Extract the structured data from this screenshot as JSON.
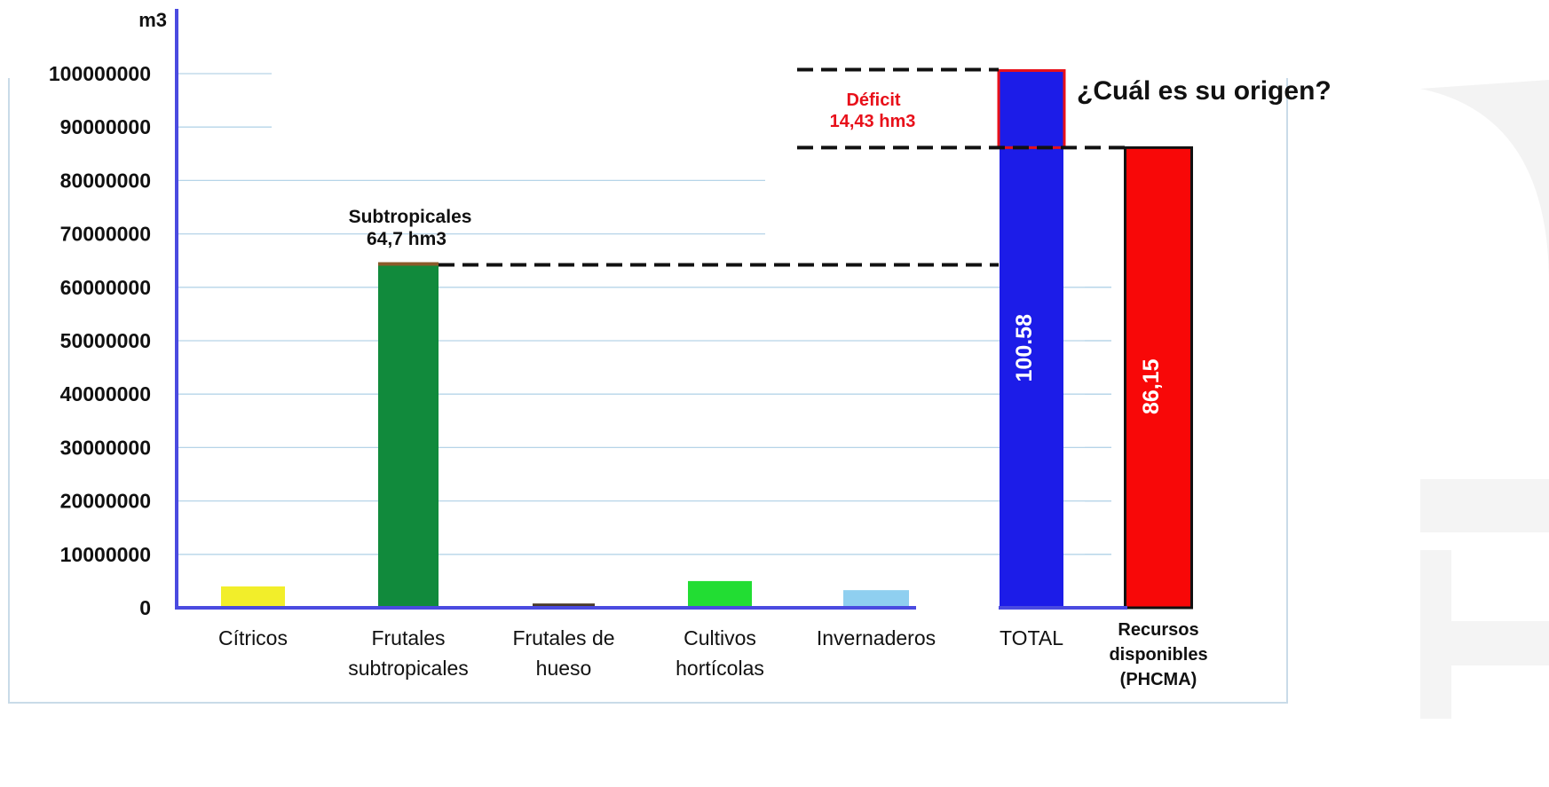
{
  "chart_data": {
    "type": "bar",
    "ylabel": "m3",
    "ylim": [
      0,
      100000000
    ],
    "yticks": [
      "0",
      "10000000",
      "20000000",
      "30000000",
      "40000000",
      "50000000",
      "60000000",
      "70000000",
      "80000000",
      "90000000",
      "100000000"
    ],
    "grid": true,
    "categories": [
      {
        "lines": [
          "Cítricos"
        ]
      },
      {
        "lines": [
          "Frutales",
          "subtropicales"
        ]
      },
      {
        "lines": [
          "Frutales de",
          "hueso"
        ]
      },
      {
        "lines": [
          "Cultivos",
          "hortícolas"
        ]
      },
      {
        "lines": [
          "Invernaderos"
        ]
      },
      {
        "lines": [
          "TOTAL"
        ]
      },
      {
        "lines": [
          "Recursos",
          "disponibles",
          "(PHCMA)"
        ]
      }
    ],
    "values": [
      4000000,
      64700000,
      800000,
      5000000,
      3300000,
      100580000,
      86150000
    ],
    "colors": [
      "#f2ee2a",
      "#118a3c",
      "#4a3a2a",
      "#22dd33",
      "#8fcff0",
      "#1c1ce8",
      "#f80808"
    ],
    "bar_labels": [
      "",
      "",
      "",
      "",
      "",
      "100.58",
      "86,15"
    ],
    "annotations": {
      "subtropicales": [
        "Subtropicales",
        "64,7 hm3"
      ],
      "deficit": [
        "Déficit",
        "14,43 hm3"
      ],
      "question": "¿Cuál es su origen?"
    },
    "deficit_value": 14430000,
    "accent_deficit": "#e8101a"
  }
}
